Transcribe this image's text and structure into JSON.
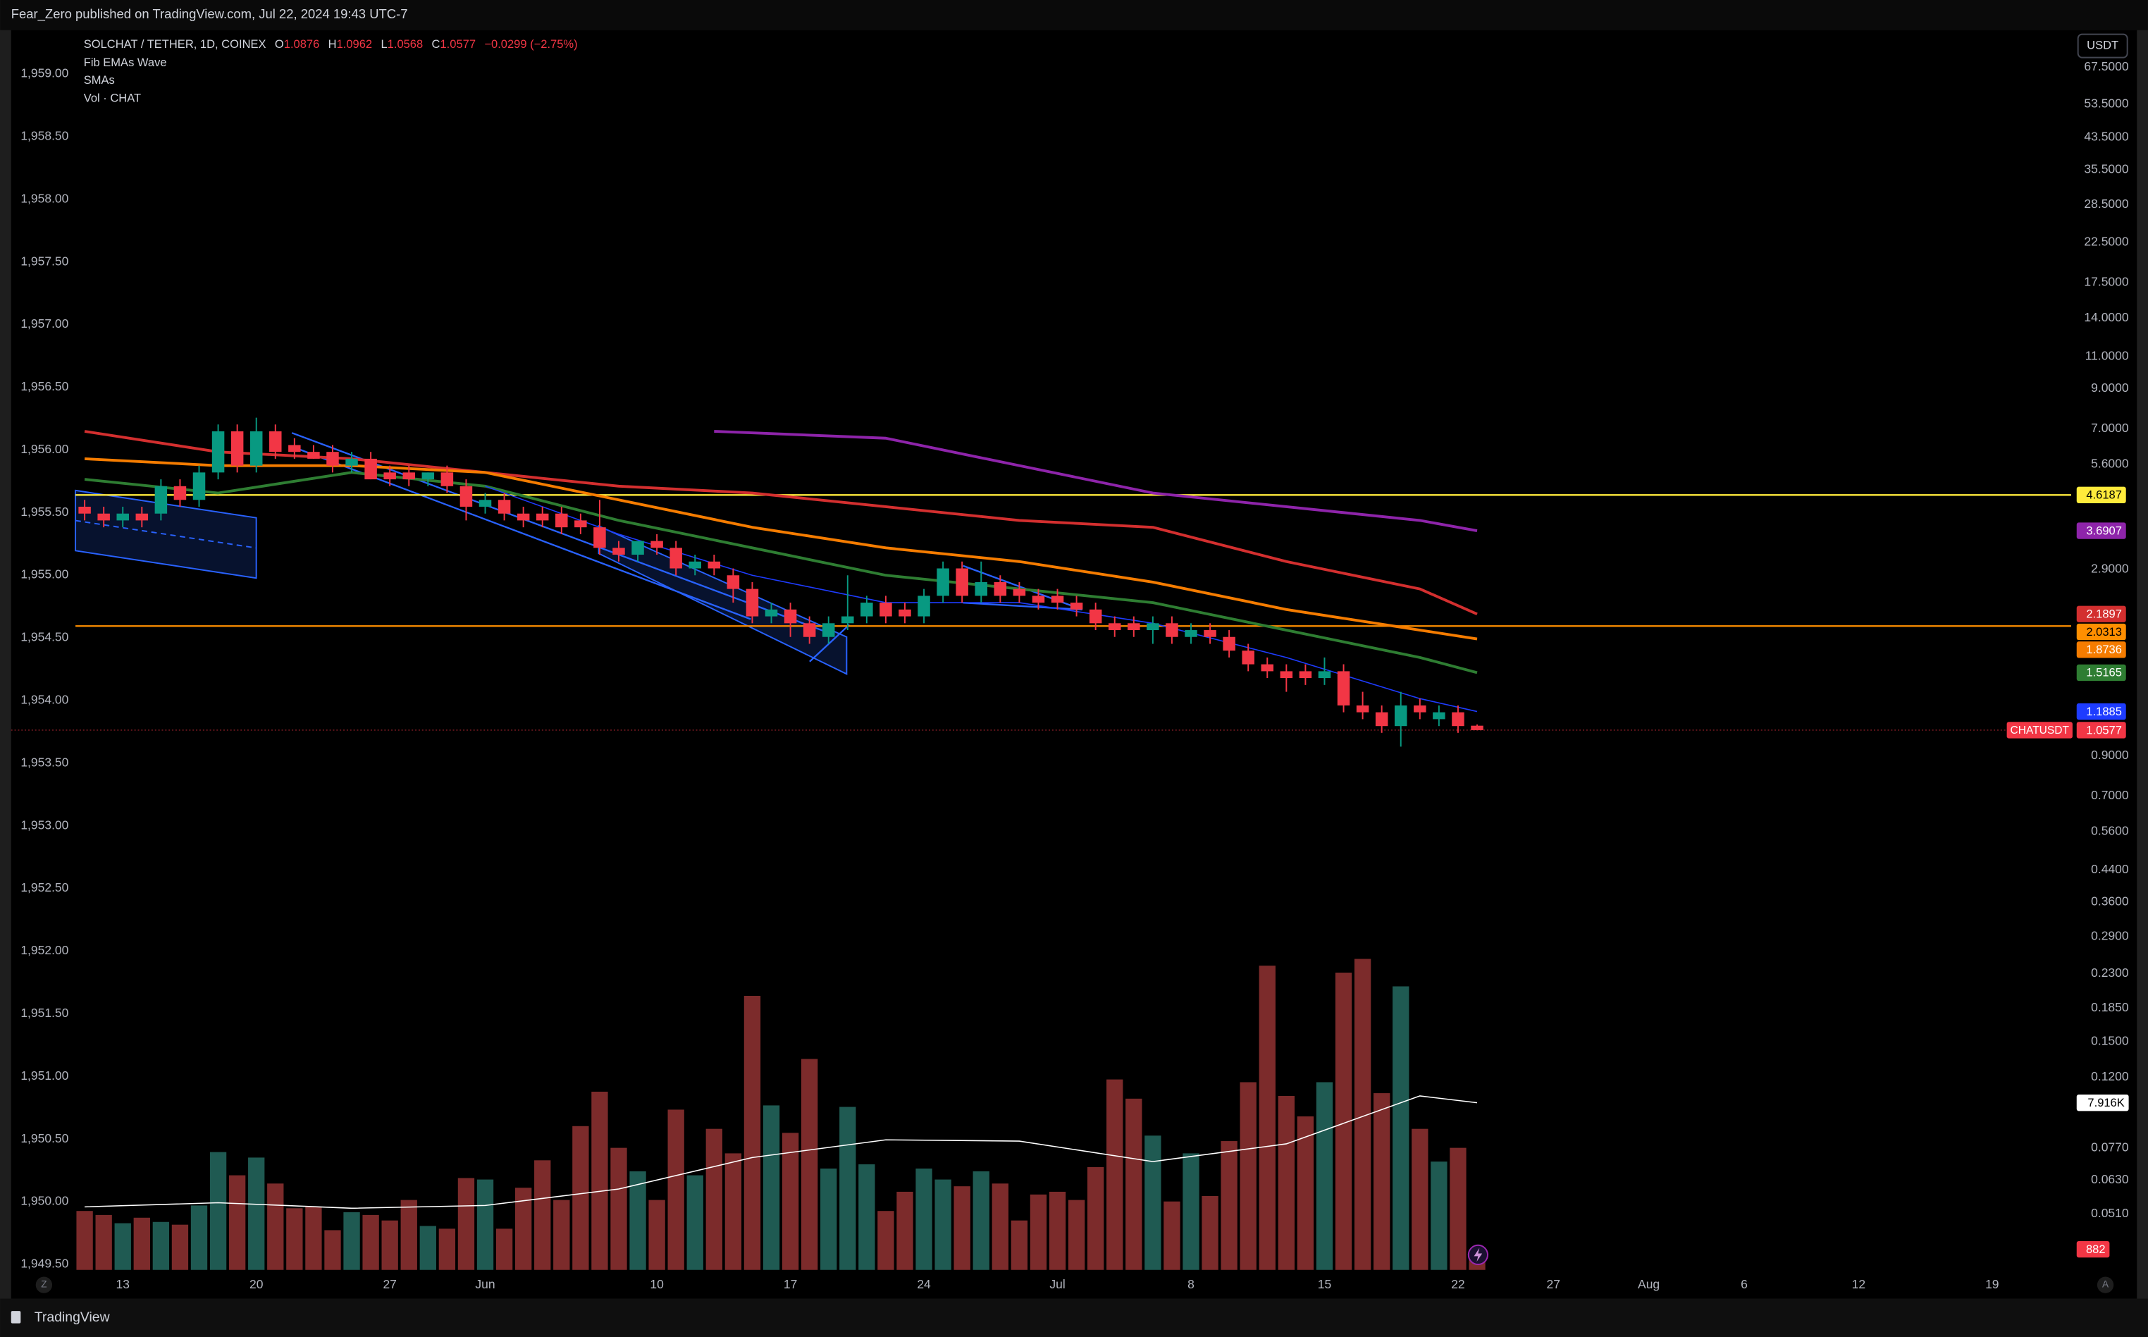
{
  "header": {
    "published": "Fear_Zero published on TradingView.com, Jul 22, 2024 19:43 UTC-7"
  },
  "chart_data": {
    "type": "candlestick",
    "symbol": "SOLCHAT / TETHER, 1D, COINEX",
    "ohlc_labels": [
      "O",
      "H",
      "L",
      "C"
    ],
    "change": "−0.0299 (−2.75%)",
    "indicators": [
      "Fib EMAs Wave",
      "SMAs",
      "Vol · CHAT"
    ],
    "currency": "USDT",
    "ticker": "CHATUSDT",
    "x": [
      "2024-05-11",
      "2024-05-12",
      "2024-05-13",
      "2024-05-14",
      "2024-05-15",
      "2024-05-16",
      "2024-05-17",
      "2024-05-18",
      "2024-05-19",
      "2024-05-20",
      "2024-05-21",
      "2024-05-22",
      "2024-05-23",
      "2024-05-24",
      "2024-05-25",
      "2024-05-26",
      "2024-05-27",
      "2024-05-28",
      "2024-05-29",
      "2024-05-30",
      "2024-05-31",
      "2024-06-01",
      "2024-06-02",
      "2024-06-03",
      "2024-06-04",
      "2024-06-05",
      "2024-06-06",
      "2024-06-07",
      "2024-06-08",
      "2024-06-09",
      "2024-06-10",
      "2024-06-11",
      "2024-06-12",
      "2024-06-13",
      "2024-06-14",
      "2024-06-15",
      "2024-06-16",
      "2024-06-17",
      "2024-06-18",
      "2024-06-19",
      "2024-06-20",
      "2024-06-21",
      "2024-06-22",
      "2024-06-23",
      "2024-06-24",
      "2024-06-25",
      "2024-06-26",
      "2024-06-27",
      "2024-06-28",
      "2024-06-29",
      "2024-06-30",
      "2024-07-01",
      "2024-07-02",
      "2024-07-03",
      "2024-07-04",
      "2024-07-05",
      "2024-07-06",
      "2024-07-07",
      "2024-07-08",
      "2024-07-09",
      "2024-07-10",
      "2024-07-11",
      "2024-07-12",
      "2024-07-13",
      "2024-07-14",
      "2024-07-15",
      "2024-07-16",
      "2024-07-17",
      "2024-07-18",
      "2024-07-19",
      "2024-07-20",
      "2024-07-21",
      "2024-07-22",
      "2024-07-23"
    ],
    "open": [
      4.291,
      4.11,
      3.938,
      4.11,
      4.11,
      4.881,
      4.479,
      5.319,
      6.883,
      5.552,
      6.883,
      6.316,
      6.051,
      6.051,
      5.552,
      5.796,
      5.319,
      5.319,
      5.095,
      5.319,
      4.881,
      4.291,
      4.479,
      4.11,
      4.11,
      4.11,
      3.938,
      3.772,
      3.316,
      3.177,
      3.462,
      3.316,
      2.915,
      3.043,
      2.792,
      2.563,
      2.158,
      2.253,
      2.067,
      1.897,
      2.067,
      2.158,
      2.352,
      2.253,
      2.158,
      2.455,
      2.915,
      2.455,
      2.675,
      2.563,
      2.455,
      2.455,
      2.352,
      2.253,
      2.067,
      2.067,
      1.98,
      2.067,
      1.897,
      1.98,
      1.897,
      1.741,
      1.598,
      1.53,
      1.53,
      1.466,
      1.53,
      1.235,
      1.183,
      1.085,
      1.235,
      1.133,
      1.183,
      1.0876
    ],
    "high": [
      4.479,
      4.291,
      4.291,
      4.291,
      5.095,
      5.095,
      5.552,
      7.185,
      7.185,
      7.5,
      7.185,
      6.593,
      6.316,
      6.316,
      6.051,
      6.051,
      5.552,
      5.552,
      5.319,
      5.552,
      5.095,
      4.676,
      4.676,
      4.291,
      4.291,
      4.291,
      4.11,
      4.479,
      3.462,
      3.462,
      3.613,
      3.462,
      3.177,
      3.177,
      2.915,
      2.675,
      2.352,
      2.352,
      2.158,
      2.158,
      2.792,
      2.455,
      2.455,
      2.352,
      2.563,
      3.043,
      3.043,
      3.043,
      2.792,
      2.675,
      2.563,
      2.563,
      2.455,
      2.352,
      2.158,
      2.158,
      2.158,
      2.158,
      2.067,
      2.067,
      1.98,
      1.817,
      1.668,
      1.598,
      1.598,
      1.668,
      1.598,
      1.345,
      1.235,
      1.345,
      1.289,
      1.235,
      1.235,
      1.0962
    ],
    "low": [
      3.938,
      3.772,
      3.772,
      3.772,
      3.938,
      4.291,
      4.291,
      5.095,
      5.319,
      5.319,
      5.796,
      5.796,
      5.796,
      5.319,
      5.319,
      5.095,
      4.881,
      4.881,
      4.881,
      4.676,
      3.938,
      4.11,
      3.938,
      3.772,
      3.772,
      3.613,
      3.613,
      3.177,
      3.043,
      3.043,
      3.177,
      2.792,
      2.792,
      2.792,
      2.352,
      2.067,
      2.067,
      1.897,
      1.817,
      1.817,
      1.98,
      2.067,
      2.067,
      2.067,
      2.067,
      2.352,
      2.352,
      2.352,
      2.352,
      2.352,
      2.253,
      2.253,
      2.158,
      1.98,
      1.897,
      1.897,
      1.817,
      1.817,
      1.817,
      1.817,
      1.668,
      1.53,
      1.466,
      1.345,
      1.404,
      1.404,
      1.183,
      1.133,
      1.04,
      0.954,
      1.133,
      1.085,
      1.04,
      1.0568
    ],
    "close": [
      4.11,
      3.938,
      4.11,
      3.938,
      4.881,
      4.479,
      5.319,
      6.883,
      5.552,
      6.883,
      6.051,
      6.051,
      5.796,
      5.552,
      5.796,
      5.095,
      5.095,
      5.095,
      5.319,
      4.881,
      4.291,
      4.479,
      4.11,
      3.938,
      3.938,
      3.772,
      3.772,
      3.316,
      3.177,
      3.462,
      3.316,
      2.915,
      3.043,
      2.915,
      2.563,
      2.158,
      2.253,
      2.067,
      1.897,
      2.067,
      2.158,
      2.352,
      2.158,
      2.158,
      2.455,
      2.915,
      2.455,
      2.675,
      2.455,
      2.455,
      2.352,
      2.352,
      2.253,
      2.067,
      1.98,
      1.98,
      2.067,
      1.897,
      1.98,
      1.897,
      1.741,
      1.598,
      1.53,
      1.466,
      1.466,
      1.53,
      1.235,
      1.183,
      1.085,
      1.235,
      1.183,
      1.183,
      1.085,
      1.0577
    ],
    "volume": [
      2790,
      2600,
      2210,
      2470,
      2270,
      2140,
      3050,
      5580,
      4480,
      5320,
      4090,
      2920,
      2980,
      1880,
      2730,
      2600,
      2340,
      3310,
      2080,
      1950,
      4350,
      4280,
      1950,
      3890,
      5190,
      3310,
      6810,
      8440,
      5780,
      4670,
      3310,
      7590,
      4480,
      6680,
      5520,
      12980,
      7790,
      6490,
      9990,
      4800,
      7720,
      5000,
      2790,
      3700,
      4800,
      4280,
      3960,
      4670,
      4090,
      2340,
      3570,
      3700,
      3310,
      4870,
      9020,
      8110,
      6360,
      3240,
      5520,
      3500,
      6100,
      8890,
      14410,
      8240,
      7270,
      8890,
      14080,
      14730,
      8370,
      13430,
      6680,
      5130,
      5780,
      882
    ],
    "colors": {
      "up": "#089981",
      "down": "#f23645",
      "volume_up": "#1f5a52",
      "volume_down": "#7c2b2b"
    },
    "log_y": true,
    "ylim": [
      0.0359,
      85.1
    ],
    "yticks": [
      {
        "value": 67.5,
        "label": "67.5000"
      },
      {
        "value": 53.5,
        "label": "53.5000"
      },
      {
        "value": 43.5,
        "label": "43.5000"
      },
      {
        "value": 35.5,
        "label": "35.5000"
      },
      {
        "value": 28.5,
        "label": "28.5000"
      },
      {
        "value": 22.5,
        "label": "22.5000"
      },
      {
        "value": 17.5,
        "label": "17.5000"
      },
      {
        "value": 14,
        "label": "14.0000"
      },
      {
        "value": 11,
        "label": "11.0000"
      },
      {
        "value": 9,
        "label": "9.0000"
      },
      {
        "value": 7,
        "label": "7.0000"
      },
      {
        "value": 5.6,
        "label": "5.6000"
      },
      {
        "value": 2.9,
        "label": "2.9000"
      },
      {
        "value": 0.9,
        "label": "0.9000"
      },
      {
        "value": 0.7,
        "label": "0.7000"
      },
      {
        "value": 0.56,
        "label": "0.5600"
      },
      {
        "value": 0.44,
        "label": "0.4400"
      },
      {
        "value": 0.36,
        "label": "0.3600"
      },
      {
        "value": 0.29,
        "label": "0.2900"
      },
      {
        "value": 0.23,
        "label": "0.2300"
      },
      {
        "value": 0.185,
        "label": "0.1850"
      },
      {
        "value": 0.15,
        "label": "0.1500"
      },
      {
        "value": 0.12,
        "label": "0.1200"
      },
      {
        "value": 0.077,
        "label": "0.0770"
      },
      {
        "value": 0.063,
        "label": "0.0630"
      },
      {
        "value": 0.051,
        "label": "0.0510"
      }
    ],
    "y2lim": [
      1949.456,
      1959.35
    ],
    "y2ticks": [
      {
        "value": 1959,
        "label": "1,959.00"
      },
      {
        "value": 1958.5,
        "label": "1,958.50"
      },
      {
        "value": 1958,
        "label": "1,958.00"
      },
      {
        "value": 1957.5,
        "label": "1,957.50"
      },
      {
        "value": 1957,
        "label": "1,957.00"
      },
      {
        "value": 1956.5,
        "label": "1,956.50"
      },
      {
        "value": 1956,
        "label": "1,956.00"
      },
      {
        "value": 1955.5,
        "label": "1,955.50"
      },
      {
        "value": 1955,
        "label": "1,955.00"
      },
      {
        "value": 1954.5,
        "label": "1,954.50"
      },
      {
        "value": 1954,
        "label": "1,954.00"
      },
      {
        "value": 1953.5,
        "label": "1,953.50"
      },
      {
        "value": 1953,
        "label": "1,953.00"
      },
      {
        "value": 1952.5,
        "label": "1,952.50"
      },
      {
        "value": 1952,
        "label": "1,952.00"
      },
      {
        "value": 1951.5,
        "label": "1,951.50"
      },
      {
        "value": 1951,
        "label": "1,951.00"
      },
      {
        "value": 1950.5,
        "label": "1,950.50"
      },
      {
        "value": 1950,
        "label": "1,950.00"
      },
      {
        "value": 1949.5,
        "label": "1,949.50"
      }
    ],
    "xlim": [
      "2024-05-07",
      "2024-08-23"
    ],
    "xticks": [
      {
        "value": "2024-05-13",
        "label": "13"
      },
      {
        "value": "2024-05-20",
        "label": "20"
      },
      {
        "value": "2024-05-27",
        "label": "27"
      },
      {
        "value": "2024-06-01",
        "label": "Jun"
      },
      {
        "value": "2024-06-10",
        "label": "10"
      },
      {
        "value": "2024-06-17",
        "label": "17"
      },
      {
        "value": "2024-06-24",
        "label": "24"
      },
      {
        "value": "2024-07-01",
        "label": "Jul"
      },
      {
        "value": "2024-07-08",
        "label": "8"
      },
      {
        "value": "2024-07-15",
        "label": "15"
      },
      {
        "value": "2024-07-22",
        "label": "22"
      },
      {
        "value": "2024-07-27",
        "label": "27"
      },
      {
        "value": "2024-08-01",
        "label": "Aug"
      },
      {
        "value": "2024-08-06",
        "label": "6"
      },
      {
        "value": "2024-08-12",
        "label": "12"
      },
      {
        "value": "2024-08-19",
        "label": "19"
      }
    ],
    "lines": [
      {
        "color": "#d32f2f",
        "x": [
          "2024-05-11",
          "2024-05-18",
          "2024-05-25",
          "2024-06-01",
          "2024-06-08",
          "2024-06-15",
          "2024-06-22",
          "2024-06-29",
          "2024-07-06",
          "2024-07-13",
          "2024-07-20",
          "2024-07-23"
        ],
        "values": [
          6.883,
          6.051,
          5.796,
          5.319,
          4.881,
          4.676,
          4.291,
          3.938,
          3.772,
          3.043,
          2.563,
          2.1897
        ]
      },
      {
        "color": "#f57c00",
        "x": [
          "2024-05-11",
          "2024-05-18",
          "2024-05-25",
          "2024-06-01",
          "2024-06-08",
          "2024-06-15",
          "2024-06-22",
          "2024-06-29",
          "2024-07-06",
          "2024-07-13",
          "2024-07-20",
          "2024-07-23"
        ],
        "values": [
          5.796,
          5.552,
          5.552,
          5.319,
          4.479,
          3.772,
          3.316,
          3.043,
          2.675,
          2.253,
          1.98,
          1.8736
        ]
      },
      {
        "color": "#2e7d32",
        "x": [
          "2024-05-11",
          "2024-05-18",
          "2024-05-25",
          "2024-06-01",
          "2024-06-08",
          "2024-06-15",
          "2024-06-22",
          "2024-06-29",
          "2024-07-06",
          "2024-07-13",
          "2024-07-20",
          "2024-07-23"
        ],
        "values": [
          5.095,
          4.676,
          5.319,
          4.881,
          3.938,
          3.316,
          2.792,
          2.563,
          2.352,
          1.98,
          1.668,
          1.5165
        ]
      },
      {
        "color": "#8e24aa",
        "x": [
          "2024-06-13",
          "2024-06-22",
          "2024-06-29",
          "2024-07-06",
          "2024-07-13",
          "2024-07-20",
          "2024-07-23"
        ],
        "values": [
          6.883,
          6.593,
          5.552,
          4.676,
          4.291,
          3.938,
          3.6907
        ]
      },
      {
        "color": "#1e3cff",
        "x": [
          "2024-06-01",
          "2024-06-08",
          "2024-06-15",
          "2024-06-22",
          "2024-06-29",
          "2024-07-06",
          "2024-07-13",
          "2024-07-20",
          "2024-07-23"
        ],
        "values": [
          4.881,
          3.613,
          2.792,
          2.352,
          2.352,
          2.067,
          1.668,
          1.289,
          1.1885
        ]
      }
    ],
    "hlines": [
      {
        "value": 4.6187,
        "color": "#ffeb3b"
      },
      {
        "value": 2.0313,
        "color": "#ff8f00"
      }
    ],
    "volume_ma": {
      "color": "#ffffff",
      "x": [
        "2024-05-11",
        "2024-05-18",
        "2024-05-25",
        "2024-06-01",
        "2024-06-08",
        "2024-06-15",
        "2024-06-22",
        "2024-06-29",
        "2024-07-06",
        "2024-07-13",
        "2024-07-20",
        "2024-07-23"
      ],
      "values": [
        2985,
        3180,
        2920,
        3050,
        3830,
        5320,
        6160,
        6100,
        5130,
        5970,
        8240,
        7916
      ],
      "value_labels": [
        null,
        null,
        null,
        null,
        null,
        null,
        null,
        null,
        null,
        null,
        null,
        "7.916K"
      ]
    },
    "footer": "TradingView",
    "corner_left": "Z",
    "corner_right": "A"
  }
}
